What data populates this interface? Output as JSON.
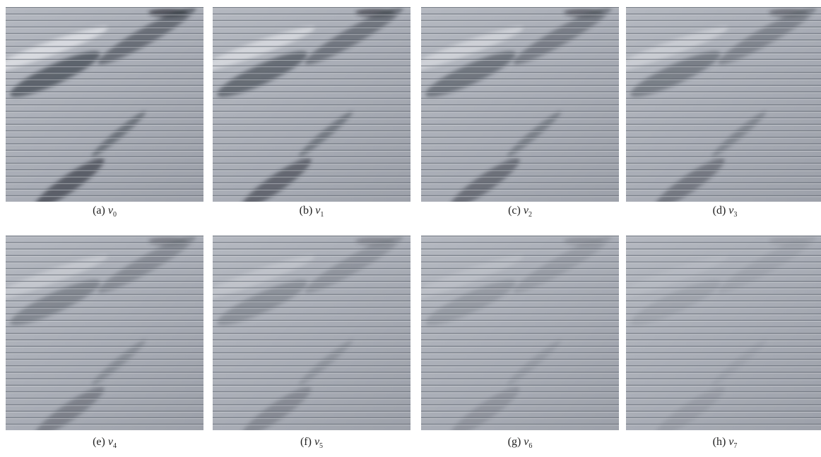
{
  "panels": [
    {
      "label": "(a)",
      "var": "v",
      "sub": "0"
    },
    {
      "label": "(b)",
      "var": "v",
      "sub": "1"
    },
    {
      "label": "(c)",
      "var": "v",
      "sub": "2"
    },
    {
      "label": "(d)",
      "var": "v",
      "sub": "3"
    },
    {
      "label": "(e)",
      "var": "v",
      "sub": "4"
    },
    {
      "label": "(f)",
      "var": "v",
      "sub": "5"
    },
    {
      "label": "(g)",
      "var": "v",
      "sub": "6"
    },
    {
      "label": "(h)",
      "var": "v",
      "sub": "7"
    }
  ]
}
